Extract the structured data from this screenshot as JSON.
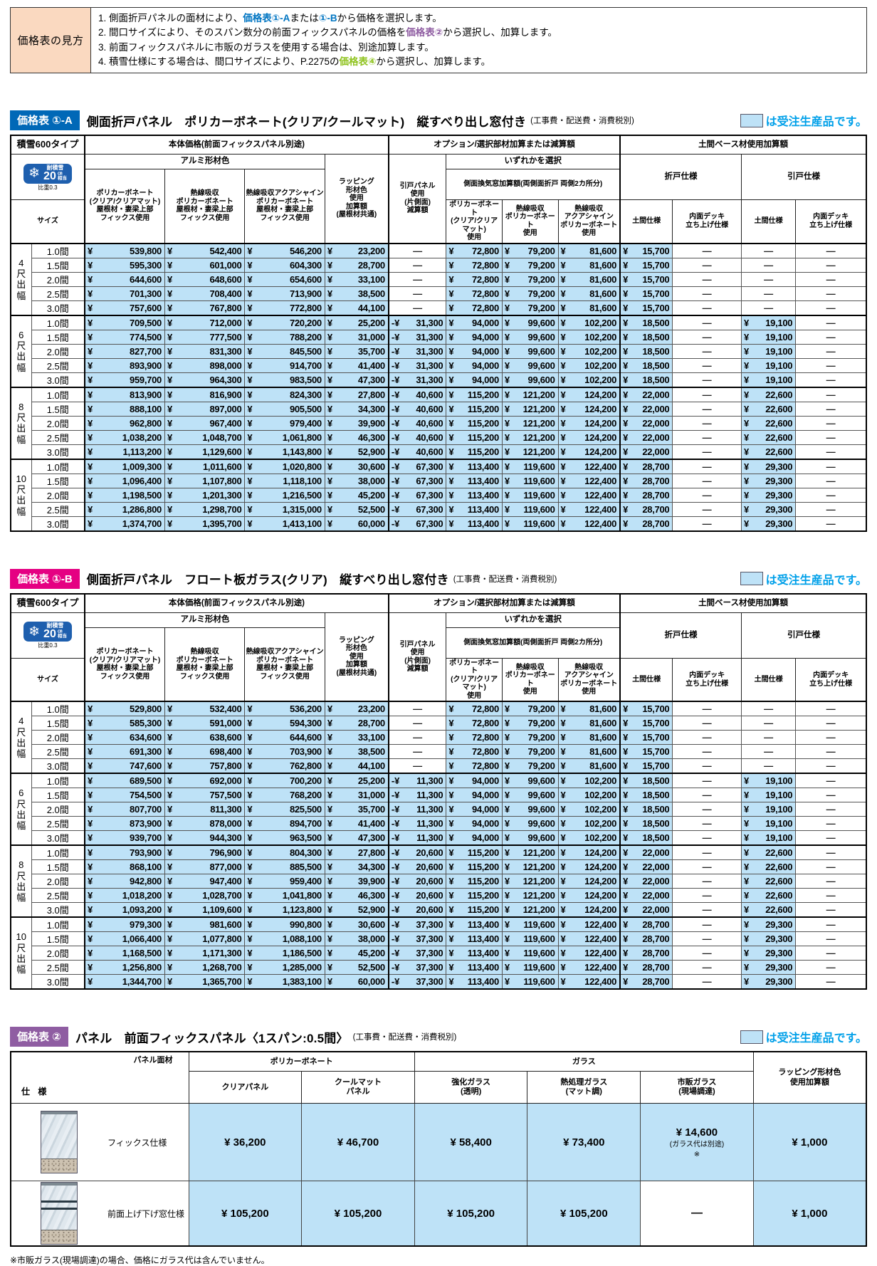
{
  "page": {
    "order_note": "は受注生産品です。"
  },
  "howto": {
    "title": "価格表の見方",
    "lines": [
      {
        "segments": [
          {
            "t": "1. 側面折戸パネルの面材により、"
          },
          {
            "t": "価格表①-A",
            "c": "blue"
          },
          {
            "t": "または"
          },
          {
            "t": "①-B",
            "c": "blue"
          },
          {
            "t": "から価格を選択します。"
          }
        ]
      },
      {
        "segments": [
          {
            "t": "2. 間口サイズにより、そのスパン数分の前面フィックスパネルの価格を"
          },
          {
            "t": "価格表②",
            "c": "purple"
          },
          {
            "t": "から選択し、加算します。"
          }
        ]
      },
      {
        "segments": [
          {
            "t": "3. 前面フィックスパネルに市販のガラスを使用する場合は、別途加算します。"
          }
        ]
      },
      {
        "segments": [
          {
            "t": "4. 積雪仕様にする場合は、間口サイズにより、P.2275の"
          },
          {
            "t": "価格表④",
            "c": "green"
          },
          {
            "t": "から選択し、加算します。"
          }
        ]
      }
    ]
  },
  "h": {
    "snow_type": "積雪600タイプ",
    "snow_badge_label": "耐積雪",
    "snow_badge_value": "20",
    "snow_badge_unit": "㎝\n相当",
    "snow_badge_sub": "比重0.3",
    "size": "サイズ",
    "body_group": "本体価格(前面フィックスパネル別途)",
    "alumi": "アルミ形材色",
    "col_poly": "ポリカーボネート\n(クリア/クリアマット)\n屋根材・妻梁上部\nフィックス使用",
    "col_heat": "熱線吸収\nポリカーボネート\n屋根材・妻梁上部\nフィックス使用",
    "col_aqua": "熱線吸収アクアシャイン\nポリカーボネート\n屋根材・妻梁上部\nフィックス使用",
    "wrap": "ラッピング\n形材色\n使用\n加算額\n(屋根材共通)",
    "option_group": "オプション/選択部材加算または減算額",
    "hikido": "引戸パネル\n使用\n(片側面)\n減算額",
    "select_one": "いずれかを選択",
    "vent_group": "側面換気窓加算額(両側面折戸 両側2カ所分)",
    "vent_poly": "ポリカーボネート\n(クリア/クリアマット)\n使用",
    "vent_heat": "熱線吸収\nポリカーボネート\n使用",
    "vent_aqua": "熱線吸収\nアクアシャイン\nポリカーボネート使用",
    "doma_group": "土間ベース材使用加算額",
    "orito": "折戸仕様",
    "hikido_style": "引戸仕様",
    "doma": "土間仕様",
    "deck": "内面デッキ\n立ち上げ仕様"
  },
  "table_1a": {
    "tag": "価格表 ①-A",
    "title": "側面折戸パネル　ポリカーボネート(クリア/クールマット)　縦すべり出し窓付き",
    "note": "(工事費・配送費・消費税別)",
    "groups": [
      {
        "label": [
          "4",
          "尺",
          "出",
          "幅"
        ],
        "rows": [
          {
            "span": "1.0間",
            "values": [
              "¥539,800",
              "¥542,400",
              "¥546,200",
              "¥23,200",
              "—",
              "¥72,800",
              "¥79,200",
              "¥81,600",
              "¥15,700",
              "—",
              "—",
              "—"
            ]
          },
          {
            "span": "1.5間",
            "values": [
              "¥595,300",
              "¥601,000",
              "¥604,300",
              "¥28,700",
              "—",
              "¥72,800",
              "¥79,200",
              "¥81,600",
              "¥15,700",
              "—",
              "—",
              "—"
            ]
          },
          {
            "span": "2.0間",
            "values": [
              "¥644,600",
              "¥648,600",
              "¥654,600",
              "¥33,100",
              "—",
              "¥72,800",
              "¥79,200",
              "¥81,600",
              "¥15,700",
              "—",
              "—",
              "—"
            ]
          },
          {
            "span": "2.5間",
            "values": [
              "¥701,300",
              "¥708,400",
              "¥713,900",
              "¥38,500",
              "—",
              "¥72,800",
              "¥79,200",
              "¥81,600",
              "¥15,700",
              "—",
              "—",
              "—"
            ]
          },
          {
            "span": "3.0間",
            "values": [
              "¥757,600",
              "¥767,800",
              "¥772,800",
              "¥44,100",
              "—",
              "¥72,800",
              "¥79,200",
              "¥81,600",
              "¥15,700",
              "—",
              "—",
              "—"
            ]
          }
        ]
      },
      {
        "label": [
          "6",
          "尺",
          "出",
          "幅"
        ],
        "rows": [
          {
            "span": "1.0間",
            "values": [
              "¥709,500",
              "¥712,000",
              "¥720,200",
              "¥25,200",
              "-¥31,300",
              "¥94,000",
              "¥99,600",
              "¥102,200",
              "¥18,500",
              "—",
              "¥19,100",
              "—"
            ]
          },
          {
            "span": "1.5間",
            "values": [
              "¥774,500",
              "¥777,500",
              "¥788,200",
              "¥31,000",
              "-¥31,300",
              "¥94,000",
              "¥99,600",
              "¥102,200",
              "¥18,500",
              "—",
              "¥19,100",
              "—"
            ]
          },
          {
            "span": "2.0間",
            "values": [
              "¥827,700",
              "¥831,300",
              "¥845,500",
              "¥35,700",
              "-¥31,300",
              "¥94,000",
              "¥99,600",
              "¥102,200",
              "¥18,500",
              "—",
              "¥19,100",
              "—"
            ]
          },
          {
            "span": "2.5間",
            "values": [
              "¥893,900",
              "¥898,000",
              "¥914,700",
              "¥41,400",
              "-¥31,300",
              "¥94,000",
              "¥99,600",
              "¥102,200",
              "¥18,500",
              "—",
              "¥19,100",
              "—"
            ]
          },
          {
            "span": "3.0間",
            "values": [
              "¥959,700",
              "¥964,300",
              "¥983,500",
              "¥47,300",
              "-¥31,300",
              "¥94,000",
              "¥99,600",
              "¥102,200",
              "¥18,500",
              "—",
              "¥19,100",
              "—"
            ]
          }
        ]
      },
      {
        "label": [
          "8",
          "尺",
          "出",
          "幅"
        ],
        "rows": [
          {
            "span": "1.0間",
            "values": [
              "¥813,900",
              "¥816,900",
              "¥824,300",
              "¥27,800",
              "-¥40,600",
              "¥115,200",
              "¥121,200",
              "¥124,200",
              "¥22,000",
              "—",
              "¥22,600",
              "—"
            ]
          },
          {
            "span": "1.5間",
            "values": [
              "¥888,100",
              "¥897,000",
              "¥905,500",
              "¥34,300",
              "-¥40,600",
              "¥115,200",
              "¥121,200",
              "¥124,200",
              "¥22,000",
              "—",
              "¥22,600",
              "—"
            ]
          },
          {
            "span": "2.0間",
            "values": [
              "¥962,800",
              "¥967,400",
              "¥979,400",
              "¥39,900",
              "-¥40,600",
              "¥115,200",
              "¥121,200",
              "¥124,200",
              "¥22,000",
              "—",
              "¥22,600",
              "—"
            ]
          },
          {
            "span": "2.5間",
            "values": [
              "¥1,038,200",
              "¥1,048,700",
              "¥1,061,800",
              "¥46,300",
              "-¥40,600",
              "¥115,200",
              "¥121,200",
              "¥124,200",
              "¥22,000",
              "—",
              "¥22,600",
              "—"
            ]
          },
          {
            "span": "3.0間",
            "values": [
              "¥1,113,200",
              "¥1,129,600",
              "¥1,143,800",
              "¥52,900",
              "-¥40,600",
              "¥115,200",
              "¥121,200",
              "¥124,200",
              "¥22,000",
              "—",
              "¥22,600",
              "—"
            ]
          }
        ]
      },
      {
        "label": [
          "10",
          "尺",
          "出",
          "幅"
        ],
        "rows": [
          {
            "span": "1.0間",
            "values": [
              "¥1,009,300",
              "¥1,011,600",
              "¥1,020,800",
              "¥30,600",
              "-¥67,300",
              "¥113,400",
              "¥119,600",
              "¥122,400",
              "¥28,700",
              "—",
              "¥29,300",
              "—"
            ]
          },
          {
            "span": "1.5間",
            "values": [
              "¥1,096,400",
              "¥1,107,800",
              "¥1,118,100",
              "¥38,000",
              "-¥67,300",
              "¥113,400",
              "¥119,600",
              "¥122,400",
              "¥28,700",
              "—",
              "¥29,300",
              "—"
            ]
          },
          {
            "span": "2.0間",
            "values": [
              "¥1,198,500",
              "¥1,201,300",
              "¥1,216,500",
              "¥45,200",
              "-¥67,300",
              "¥113,400",
              "¥119,600",
              "¥122,400",
              "¥28,700",
              "—",
              "¥29,300",
              "—"
            ]
          },
          {
            "span": "2.5間",
            "values": [
              "¥1,286,800",
              "¥1,298,700",
              "¥1,315,000",
              "¥52,500",
              "-¥67,300",
              "¥113,400",
              "¥119,600",
              "¥122,400",
              "¥28,700",
              "—",
              "¥29,300",
              "—"
            ]
          },
          {
            "span": "3.0間",
            "values": [
              "¥1,374,700",
              "¥1,395,700",
              "¥1,413,100",
              "¥60,000",
              "-¥67,300",
              "¥113,400",
              "¥119,600",
              "¥122,400",
              "¥28,700",
              "—",
              "¥29,300",
              "—"
            ]
          }
        ]
      }
    ]
  },
  "table_1b": {
    "tag": "価格表 ①-B",
    "title": "側面折戸パネル　フロート板ガラス(クリア)　縦すべり出し窓付き",
    "note": "(工事費・配送費・消費税別)",
    "groups": [
      {
        "label": [
          "4",
          "尺",
          "出",
          "幅"
        ],
        "rows": [
          {
            "span": "1.0間",
            "values": [
              "¥529,800",
              "¥532,400",
              "¥536,200",
              "¥23,200",
              "—",
              "¥72,800",
              "¥79,200",
              "¥81,600",
              "¥15,700",
              "—",
              "—",
              "—"
            ]
          },
          {
            "span": "1.5間",
            "values": [
              "¥585,300",
              "¥591,000",
              "¥594,300",
              "¥28,700",
              "—",
              "¥72,800",
              "¥79,200",
              "¥81,600",
              "¥15,700",
              "—",
              "—",
              "—"
            ]
          },
          {
            "span": "2.0間",
            "values": [
              "¥634,600",
              "¥638,600",
              "¥644,600",
              "¥33,100",
              "—",
              "¥72,800",
              "¥79,200",
              "¥81,600",
              "¥15,700",
              "—",
              "—",
              "—"
            ]
          },
          {
            "span": "2.5間",
            "values": [
              "¥691,300",
              "¥698,400",
              "¥703,900",
              "¥38,500",
              "—",
              "¥72,800",
              "¥79,200",
              "¥81,600",
              "¥15,700",
              "—",
              "—",
              "—"
            ]
          },
          {
            "span": "3.0間",
            "values": [
              "¥747,600",
              "¥757,800",
              "¥762,800",
              "¥44,100",
              "—",
              "¥72,800",
              "¥79,200",
              "¥81,600",
              "¥15,700",
              "—",
              "—",
              "—"
            ]
          }
        ]
      },
      {
        "label": [
          "6",
          "尺",
          "出",
          "幅"
        ],
        "rows": [
          {
            "span": "1.0間",
            "values": [
              "¥689,500",
              "¥692,000",
              "¥700,200",
              "¥25,200",
              "-¥11,300",
              "¥94,000",
              "¥99,600",
              "¥102,200",
              "¥18,500",
              "—",
              "¥19,100",
              "—"
            ]
          },
          {
            "span": "1.5間",
            "values": [
              "¥754,500",
              "¥757,500",
              "¥768,200",
              "¥31,000",
              "-¥11,300",
              "¥94,000",
              "¥99,600",
              "¥102,200",
              "¥18,500",
              "—",
              "¥19,100",
              "—"
            ]
          },
          {
            "span": "2.0間",
            "values": [
              "¥807,700",
              "¥811,300",
              "¥825,500",
              "¥35,700",
              "-¥11,300",
              "¥94,000",
              "¥99,600",
              "¥102,200",
              "¥18,500",
              "—",
              "¥19,100",
              "—"
            ]
          },
          {
            "span": "2.5間",
            "values": [
              "¥873,900",
              "¥878,000",
              "¥894,700",
              "¥41,400",
              "-¥11,300",
              "¥94,000",
              "¥99,600",
              "¥102,200",
              "¥18,500",
              "—",
              "¥19,100",
              "—"
            ]
          },
          {
            "span": "3.0間",
            "values": [
              "¥939,700",
              "¥944,300",
              "¥963,500",
              "¥47,300",
              "-¥11,300",
              "¥94,000",
              "¥99,600",
              "¥102,200",
              "¥18,500",
              "—",
              "¥19,100",
              "—"
            ]
          }
        ]
      },
      {
        "label": [
          "8",
          "尺",
          "出",
          "幅"
        ],
        "rows": [
          {
            "span": "1.0間",
            "values": [
              "¥793,900",
              "¥796,900",
              "¥804,300",
              "¥27,800",
              "-¥20,600",
              "¥115,200",
              "¥121,200",
              "¥124,200",
              "¥22,000",
              "—",
              "¥22,600",
              "—"
            ]
          },
          {
            "span": "1.5間",
            "values": [
              "¥868,100",
              "¥877,000",
              "¥885,500",
              "¥34,300",
              "-¥20,600",
              "¥115,200",
              "¥121,200",
              "¥124,200",
              "¥22,000",
              "—",
              "¥22,600",
              "—"
            ]
          },
          {
            "span": "2.0間",
            "values": [
              "¥942,800",
              "¥947,400",
              "¥959,400",
              "¥39,900",
              "-¥20,600",
              "¥115,200",
              "¥121,200",
              "¥124,200",
              "¥22,000",
              "—",
              "¥22,600",
              "—"
            ]
          },
          {
            "span": "2.5間",
            "values": [
              "¥1,018,200",
              "¥1,028,700",
              "¥1,041,800",
              "¥46,300",
              "-¥20,600",
              "¥115,200",
              "¥121,200",
              "¥124,200",
              "¥22,000",
              "—",
              "¥22,600",
              "—"
            ]
          },
          {
            "span": "3.0間",
            "values": [
              "¥1,093,200",
              "¥1,109,600",
              "¥1,123,800",
              "¥52,900",
              "-¥20,600",
              "¥115,200",
              "¥121,200",
              "¥124,200",
              "¥22,000",
              "—",
              "¥22,600",
              "—"
            ]
          }
        ]
      },
      {
        "label": [
          "10",
          "尺",
          "出",
          "幅"
        ],
        "rows": [
          {
            "span": "1.0間",
            "values": [
              "¥979,300",
              "¥981,600",
              "¥990,800",
              "¥30,600",
              "-¥37,300",
              "¥113,400",
              "¥119,600",
              "¥122,400",
              "¥28,700",
              "—",
              "¥29,300",
              "—"
            ]
          },
          {
            "span": "1.5間",
            "values": [
              "¥1,066,400",
              "¥1,077,800",
              "¥1,088,100",
              "¥38,000",
              "-¥37,300",
              "¥113,400",
              "¥119,600",
              "¥122,400",
              "¥28,700",
              "—",
              "¥29,300",
              "—"
            ]
          },
          {
            "span": "2.0間",
            "values": [
              "¥1,168,500",
              "¥1,171,300",
              "¥1,186,500",
              "¥45,200",
              "-¥37,300",
              "¥113,400",
              "¥119,600",
              "¥122,400",
              "¥28,700",
              "—",
              "¥29,300",
              "—"
            ]
          },
          {
            "span": "2.5間",
            "values": [
              "¥1,256,800",
              "¥1,268,700",
              "¥1,285,000",
              "¥52,500",
              "-¥37,300",
              "¥113,400",
              "¥119,600",
              "¥122,400",
              "¥28,700",
              "—",
              "¥29,300",
              "—"
            ]
          },
          {
            "span": "3.0間",
            "values": [
              "¥1,344,700",
              "¥1,365,700",
              "¥1,383,100",
              "¥60,000",
              "-¥37,300",
              "¥113,400",
              "¥119,600",
              "¥122,400",
              "¥28,700",
              "—",
              "¥29,300",
              "—"
            ]
          }
        ]
      }
    ]
  },
  "table_2": {
    "tag": "価格表 ②",
    "title": "パネル　前面フィックスパネル〈1スパン:0.5間〉",
    "note": "(工事費・配送費・消費税別)",
    "header": {
      "corner_top": "パネル面材",
      "corner_bottom": "仕 様",
      "poly_group": "ポリカーボネート",
      "glass_group": "ガラス",
      "cols": [
        "クリアパネル",
        "クールマット\nパネル",
        "強化ガラス\n(透明)",
        "熱処理ガラス\n(マット調)",
        "市販ガラス\n(現場調達)"
      ],
      "wrap_col": "ラッピング形材色\n使用加算額"
    },
    "rows": [
      {
        "label": "フィックス仕様",
        "values": [
          "¥ 36,200",
          "¥ 46,700",
          "¥ 58,400",
          "¥ 73,400",
          "¥ 14,600\n(ガラス代は別途)\n※",
          "¥ 1,000"
        ]
      },
      {
        "label": "前面上げ下げ窓仕様",
        "values": [
          "¥ 105,200",
          "¥ 105,200",
          "¥ 105,200",
          "¥ 105,200",
          "—",
          "¥ 1,000"
        ]
      }
    ],
    "footnote": "※市販ガラス(現場調達)の場合、価格にガラス代は含んでいません。"
  }
}
